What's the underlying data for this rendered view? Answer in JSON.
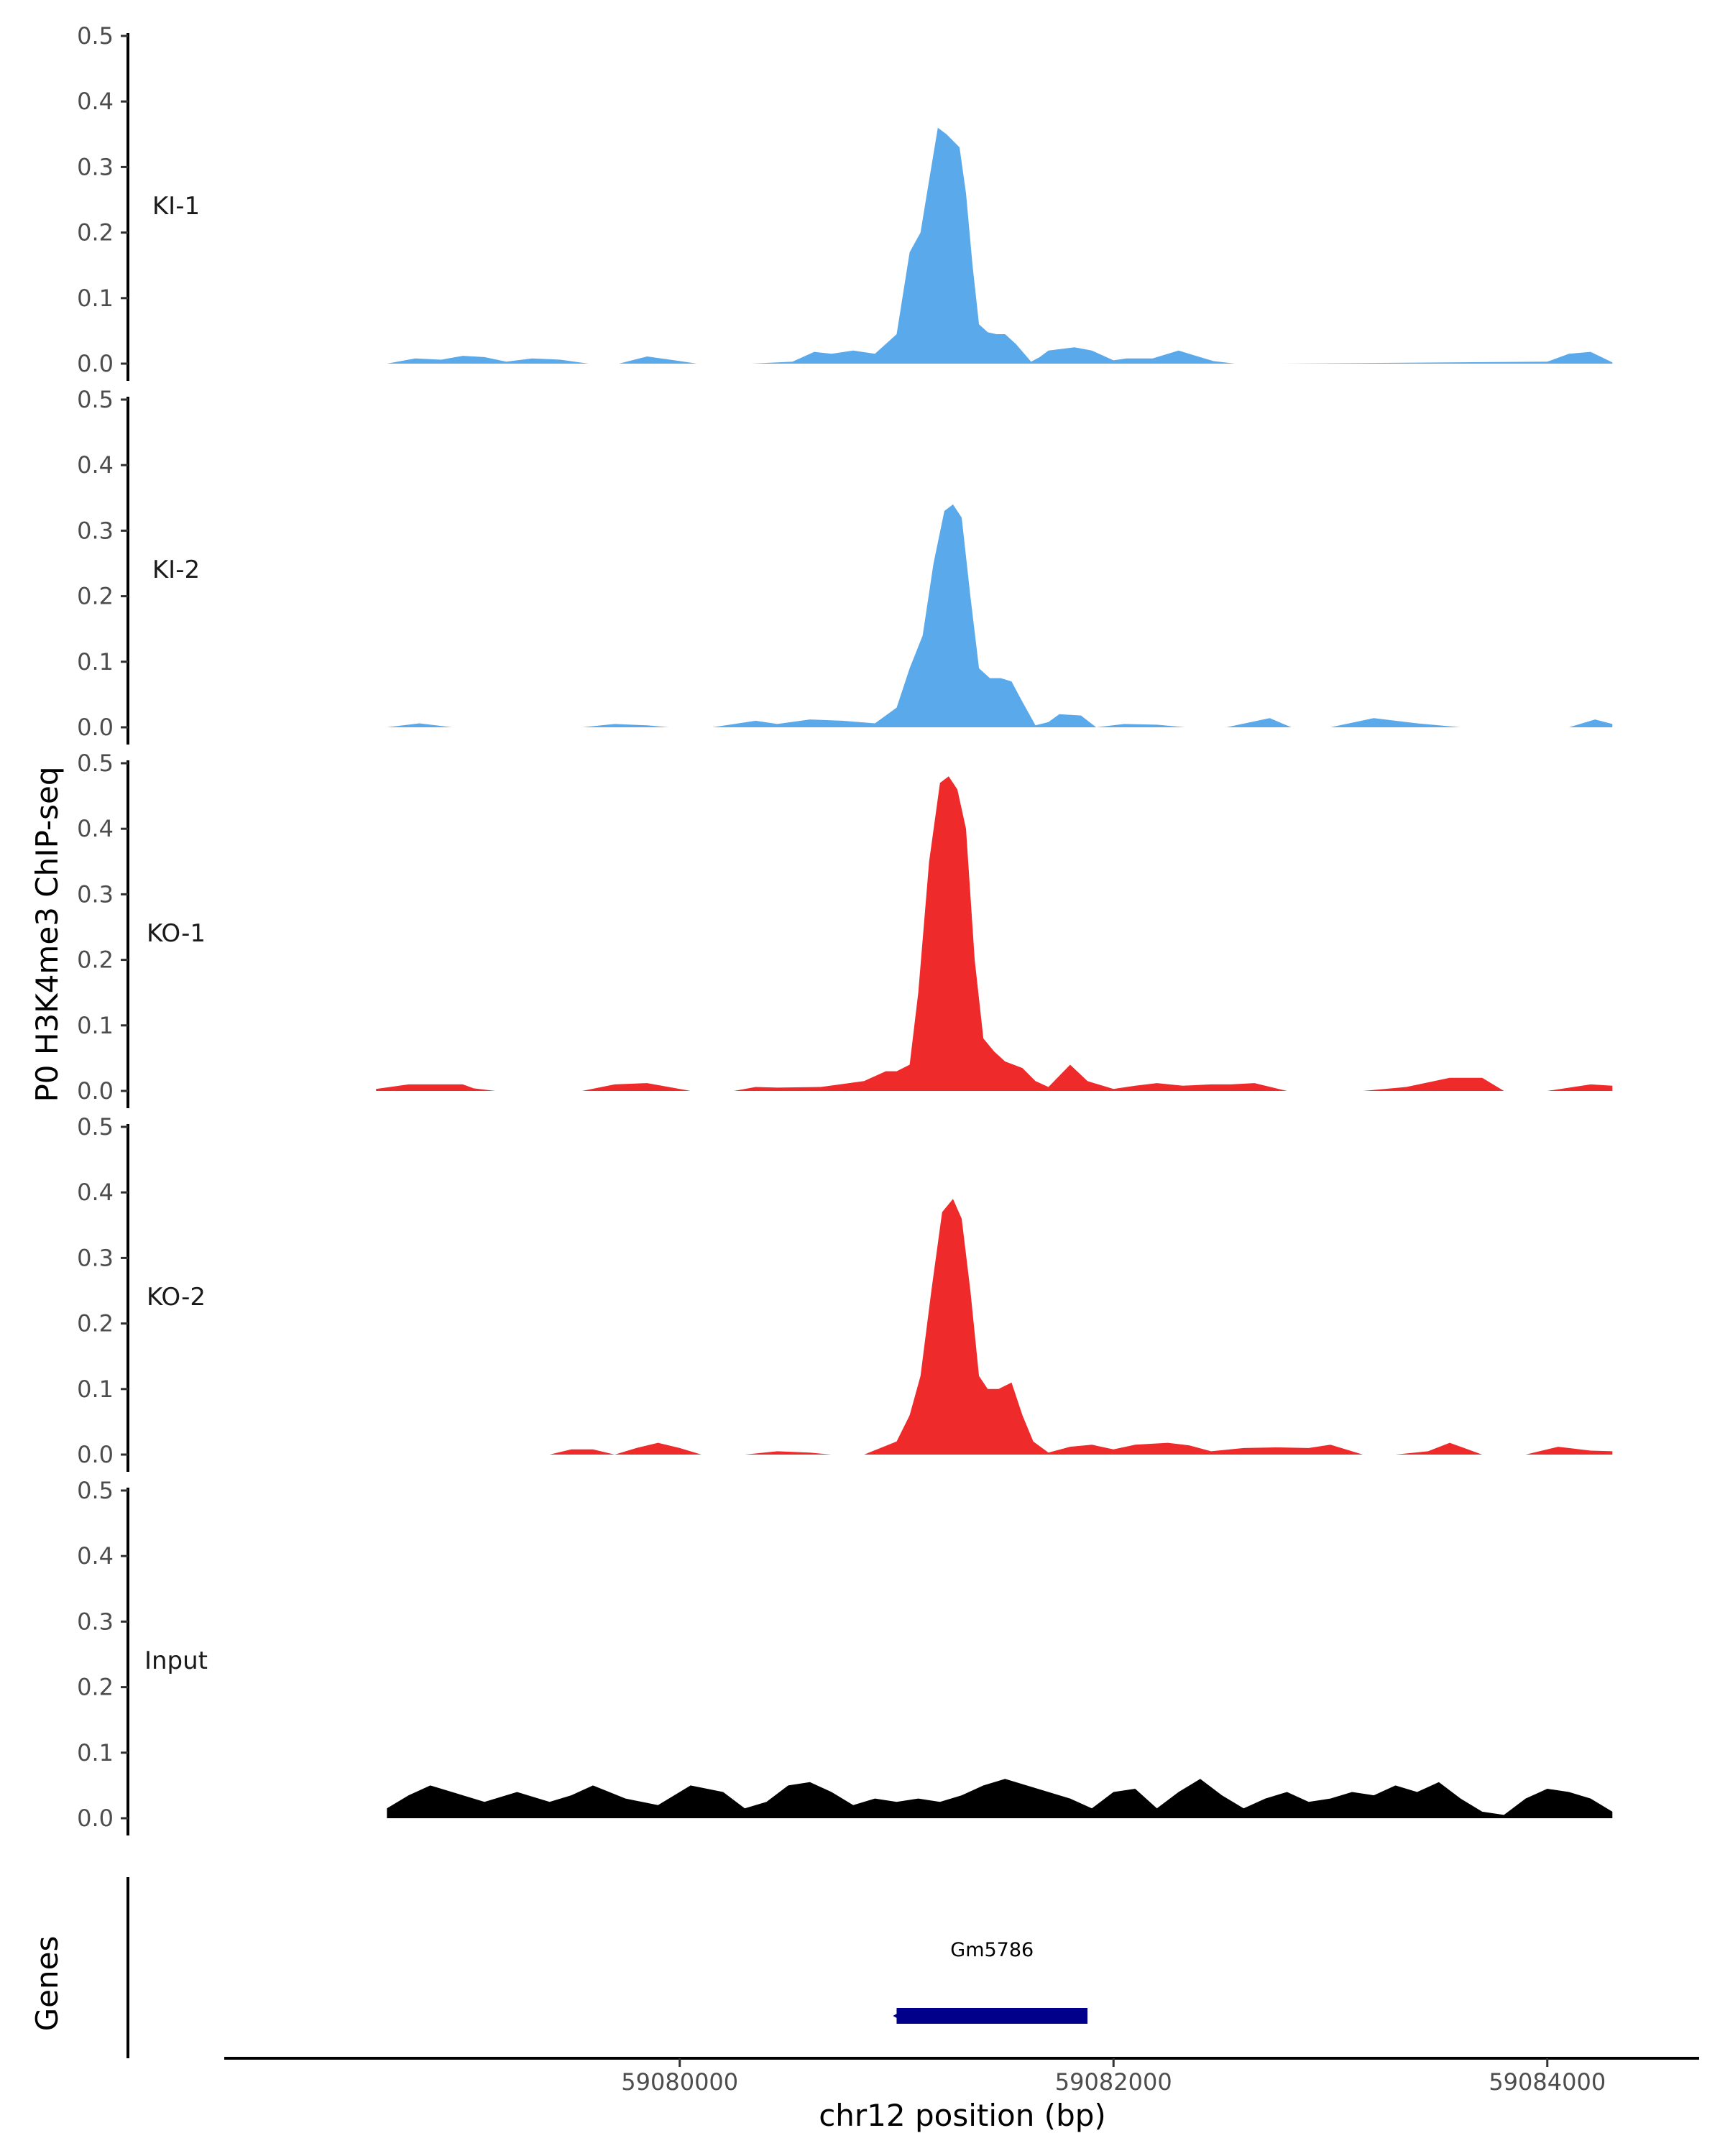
{
  "chart_data": {
    "type": "area",
    "ylabel": "P0 H3K4me3 ChIP-seq",
    "xlabel": "chr12 position (bp)",
    "ylim": [
      0,
      0.5
    ],
    "y_ticks": [
      "0.0",
      "0.1",
      "0.2",
      "0.3",
      "0.4",
      "0.5"
    ],
    "y_tick_values": [
      0,
      0.1,
      0.2,
      0.3,
      0.4,
      0.5
    ],
    "xlim": [
      59077900,
      59084700
    ],
    "x_ticks": [
      "59080000",
      "59082000",
      "59084000"
    ],
    "x_tick_values": [
      59080000,
      59082000,
      59084000
    ],
    "gene_track_label": "Genes",
    "colors": {
      "KI": "#5aaaeb",
      "KO": "#ee2a2a",
      "Input": "#000000",
      "gene": "#00008b"
    },
    "series": [
      {
        "name": "KI-1",
        "color": "#5aaaeb",
        "x": [
          59078650,
          59078780,
          59078900,
          59079000,
          59079100,
          59079200,
          59079320,
          59079450,
          59079580,
          59079720,
          59079850,
          59080000,
          59080080,
          59080180,
          59080330,
          59080520,
          59080620,
          59080700,
          59080800,
          59080900,
          59081000,
          59081060,
          59081110,
          59081150,
          59081190,
          59081230,
          59081260,
          59081290,
          59081320,
          59081350,
          59081380,
          59081420,
          59081460,
          59081500,
          59081550,
          59081620,
          59081660,
          59081700,
          59081750,
          59081820,
          59081900,
          59082000,
          59082060,
          59082180,
          59082300,
          59082460,
          59082560,
          59082620,
          59082700,
          59082770,
          59084000,
          59084100,
          59084200,
          59084300
        ],
        "y": [
          0,
          0.008,
          0.006,
          0.012,
          0.01,
          0.003,
          0.008,
          0.006,
          0,
          0,
          0.011,
          0.004,
          0,
          0,
          0,
          0.003,
          0.018,
          0.015,
          0.02,
          0.015,
          0.045,
          0.17,
          0.2,
          0.28,
          0.36,
          0.35,
          0.34,
          0.33,
          0.26,
          0.15,
          0.06,
          0.048,
          0.045,
          0.045,
          0.03,
          0.003,
          0.01,
          0.02,
          0.022,
          0.025,
          0.02,
          0.005,
          0.008,
          0.008,
          0.02,
          0.004,
          0,
          0,
          0,
          0,
          0.003,
          0.015,
          0.018,
          0.002
        ]
      },
      {
        "name": "KI-2",
        "color": "#5aaaeb",
        "x": [
          59078650,
          59078800,
          59078950,
          59079050,
          59079300,
          59079550,
          59079700,
          59079850,
          59079950,
          59080150,
          59080350,
          59080450,
          59080600,
          59080750,
          59080900,
          59081000,
          59081060,
          59081120,
          59081170,
          59081220,
          59081260,
          59081300,
          59081340,
          59081380,
          59081430,
          59081480,
          59081530,
          59081570,
          59081640,
          59081700,
          59081750,
          59081850,
          59081920,
          59082050,
          59082200,
          59082330,
          59082520,
          59082720,
          59082820,
          59083000,
          59083200,
          59083400,
          59083600,
          59084100,
          59084220,
          59084300
        ],
        "y": [
          0,
          0.006,
          0,
          0,
          0,
          0,
          0.005,
          0.003,
          0,
          0,
          0.01,
          0.005,
          0.012,
          0.01,
          0.006,
          0.03,
          0.09,
          0.14,
          0.25,
          0.33,
          0.34,
          0.32,
          0.2,
          0.09,
          0.075,
          0.075,
          0.07,
          0.045,
          0.003,
          0.008,
          0.02,
          0.018,
          0,
          0.005,
          0.004,
          0,
          0,
          0.014,
          0,
          0,
          0.014,
          0.006,
          0,
          0,
          0.012,
          0.005
        ]
      },
      {
        "name": "KO-1",
        "color": "#ee2a2a",
        "x": [
          59078600,
          59078750,
          59079000,
          59079050,
          59079150,
          59079550,
          59079700,
          59079850,
          59080000,
          59080050,
          59080250,
          59080350,
          59080450,
          59080650,
          59080850,
          59080950,
          59081000,
          59081060,
          59081100,
          59081150,
          59081200,
          59081240,
          59081280,
          59081320,
          59081360,
          59081400,
          59081450,
          59081500,
          59081580,
          59081640,
          59081700,
          59081800,
          59081880,
          59082000,
          59082100,
          59082200,
          59082320,
          59082450,
          59082540,
          59082650,
          59082800,
          59082850,
          59082950,
          59083150,
          59083350,
          59083550,
          59083700,
          59083800,
          59084000,
          59084200,
          59084300
        ],
        "y": [
          0.003,
          0.01,
          0.01,
          0.004,
          0,
          0,
          0.01,
          0.012,
          0.003,
          0,
          0,
          0.006,
          0.005,
          0.006,
          0.015,
          0.03,
          0.03,
          0.04,
          0.15,
          0.35,
          0.47,
          0.48,
          0.46,
          0.4,
          0.2,
          0.08,
          0.06,
          0.045,
          0.035,
          0.015,
          0.006,
          0.04,
          0.015,
          0.003,
          0.008,
          0.012,
          0.008,
          0.01,
          0.01,
          0.012,
          0,
          0,
          0,
          0,
          0.006,
          0.02,
          0.02,
          0,
          0,
          0.01,
          0.008
        ]
      },
      {
        "name": "KO-2",
        "color": "#ee2a2a",
        "x": [
          59079400,
          59079500,
          59079600,
          59079700,
          59079800,
          59079900,
          59080000,
          59080100,
          59080300,
          59080450,
          59080600,
          59080700,
          59080850,
          59081000,
          59081060,
          59081110,
          59081160,
          59081210,
          59081260,
          59081300,
          59081340,
          59081380,
          59081420,
          59081470,
          59081530,
          59081580,
          59081630,
          59081700,
          59081800,
          59081900,
          59082000,
          59082100,
          59082250,
          59082350,
          59082450,
          59082600,
          59082750,
          59082900,
          59083000,
          59083150,
          59083300,
          59083450,
          59083550,
          59083700,
          59083900,
          59084050,
          59084200,
          59084300
        ],
        "y": [
          0,
          0.008,
          0.008,
          0,
          0.01,
          0.018,
          0.01,
          0,
          0,
          0.005,
          0.003,
          0,
          0,
          0.02,
          0.06,
          0.12,
          0.25,
          0.37,
          0.39,
          0.36,
          0.25,
          0.12,
          0.1,
          0.1,
          0.11,
          0.06,
          0.02,
          0.003,
          0.012,
          0.015,
          0.008,
          0.015,
          0.018,
          0.014,
          0.005,
          0.01,
          0.011,
          0.01,
          0.015,
          0,
          0,
          0.005,
          0.018,
          0,
          0,
          0.012,
          0.006,
          0.005
        ]
      },
      {
        "name": "Input",
        "color": "#000000",
        "x": [
          59078650,
          59078750,
          59078850,
          59078950,
          59079100,
          59079250,
          59079400,
          59079500,
          59079600,
          59079750,
          59079900,
          59080050,
          59080200,
          59080300,
          59080400,
          59080500,
          59080600,
          59080700,
          59080800,
          59080900,
          59081000,
          59081100,
          59081200,
          59081300,
          59081400,
          59081500,
          59081600,
          59081700,
          59081800,
          59081900,
          59082000,
          59082100,
          59082200,
          59082300,
          59082400,
          59082500,
          59082600,
          59082700,
          59082800,
          59082900,
          59083000,
          59083100,
          59083200,
          59083300,
          59083400,
          59083500,
          59083600,
          59083700,
          59083800,
          59083900,
          59084000,
          59084100,
          59084200,
          59084300
        ],
        "y": [
          0.015,
          0.035,
          0.05,
          0.04,
          0.025,
          0.04,
          0.025,
          0.035,
          0.05,
          0.03,
          0.02,
          0.05,
          0.04,
          0.015,
          0.025,
          0.05,
          0.055,
          0.04,
          0.02,
          0.03,
          0.025,
          0.03,
          0.025,
          0.035,
          0.05,
          0.06,
          0.05,
          0.04,
          0.03,
          0.015,
          0.04,
          0.045,
          0.015,
          0.04,
          0.06,
          0.035,
          0.015,
          0.03,
          0.04,
          0.025,
          0.03,
          0.04,
          0.035,
          0.05,
          0.04,
          0.055,
          0.03,
          0.01,
          0.005,
          0.03,
          0.045,
          0.04,
          0.03,
          0.01
        ]
      }
    ],
    "genes": [
      {
        "name": "Gm5786",
        "start": 59081000,
        "end": 59081880,
        "strand": "-"
      }
    ]
  }
}
